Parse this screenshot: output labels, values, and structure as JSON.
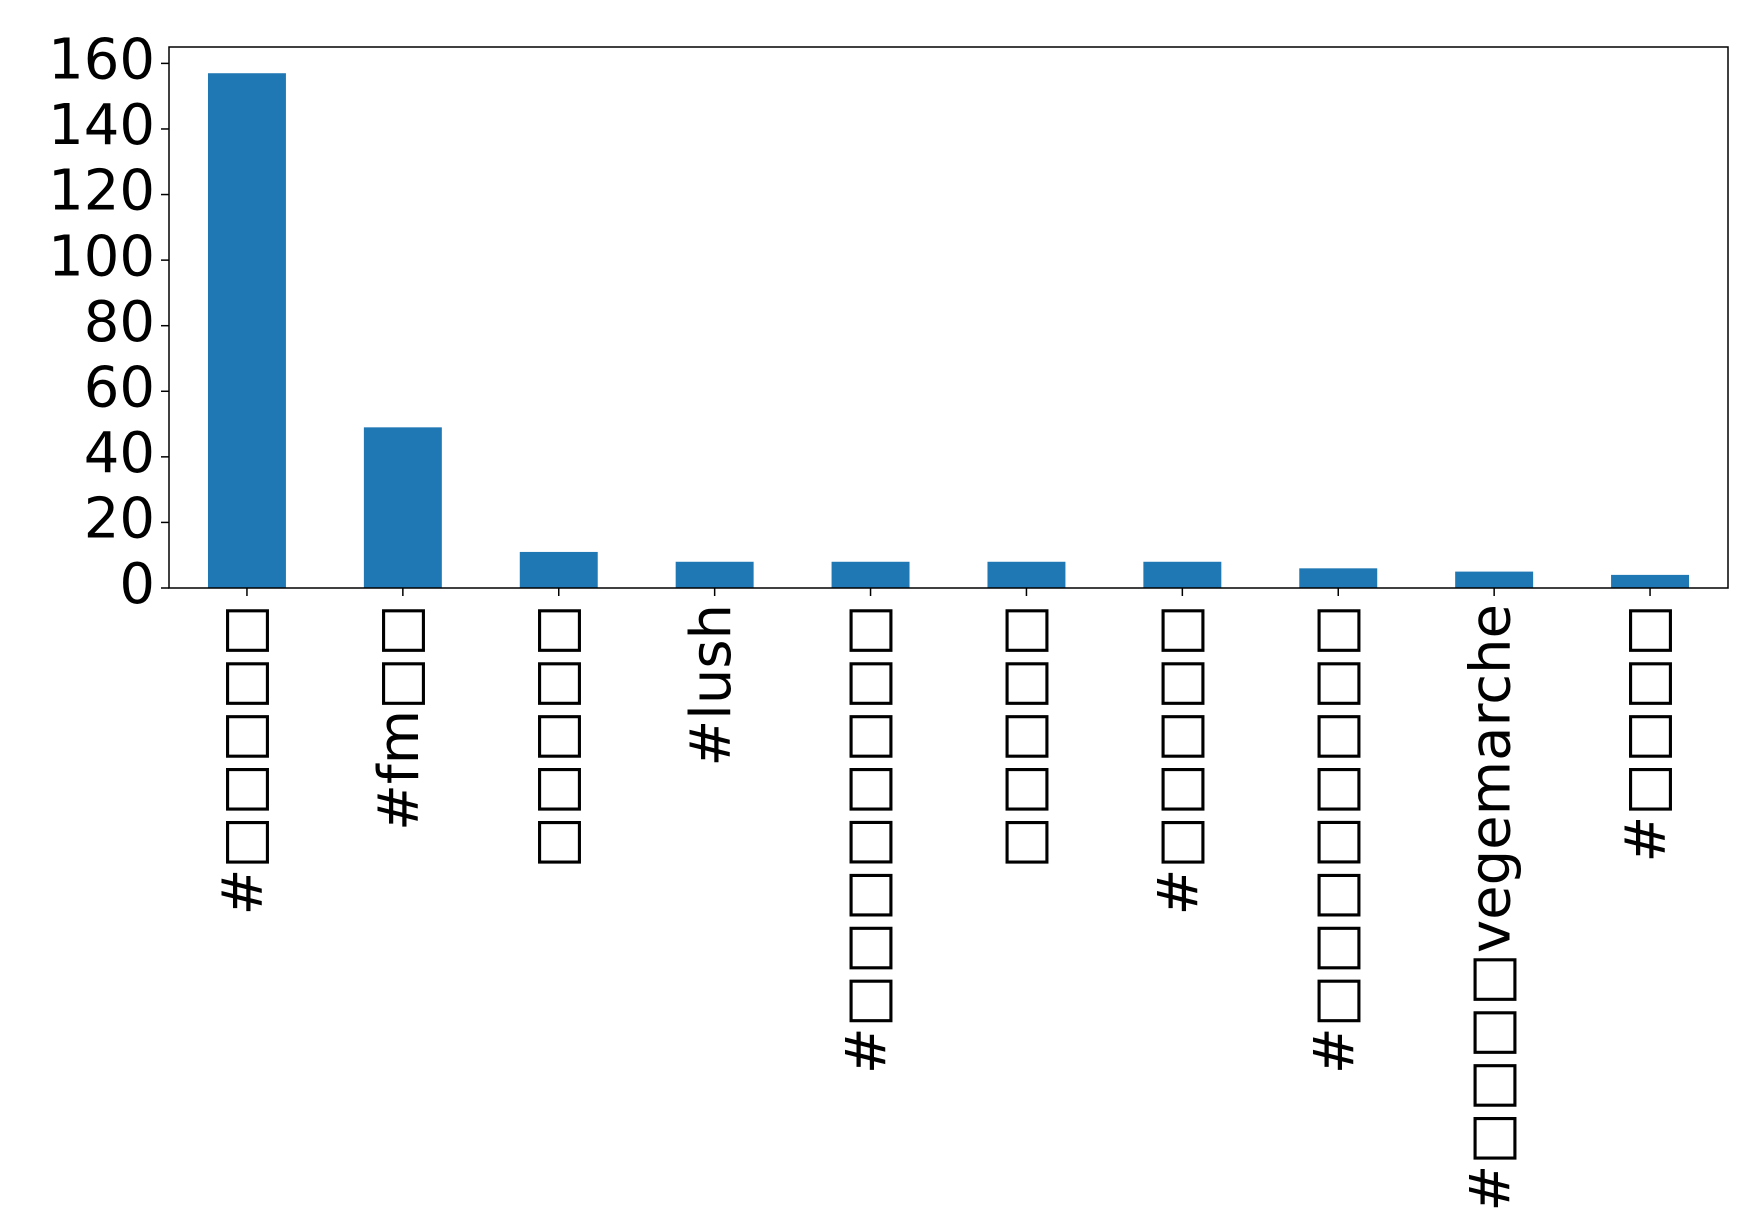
{
  "chart_data": {
    "type": "bar",
    "categories": [
      "#□□□□□",
      "#fm□□",
      "□□□□□",
      "#lush",
      "#□□□□□□□□",
      "□□□□□",
      "#□□□□□",
      "#□□□□□□□□",
      "#□□□□vegemarche",
      "#□□□□"
    ],
    "values": [
      157,
      49,
      11,
      8,
      8,
      8,
      8,
      6,
      5,
      4
    ],
    "color": "#1f77b4",
    "ylim": [
      0,
      165
    ],
    "yticks": [
      0,
      20,
      40,
      60,
      80,
      100,
      120,
      140,
      160
    ],
    "grid": false
  }
}
